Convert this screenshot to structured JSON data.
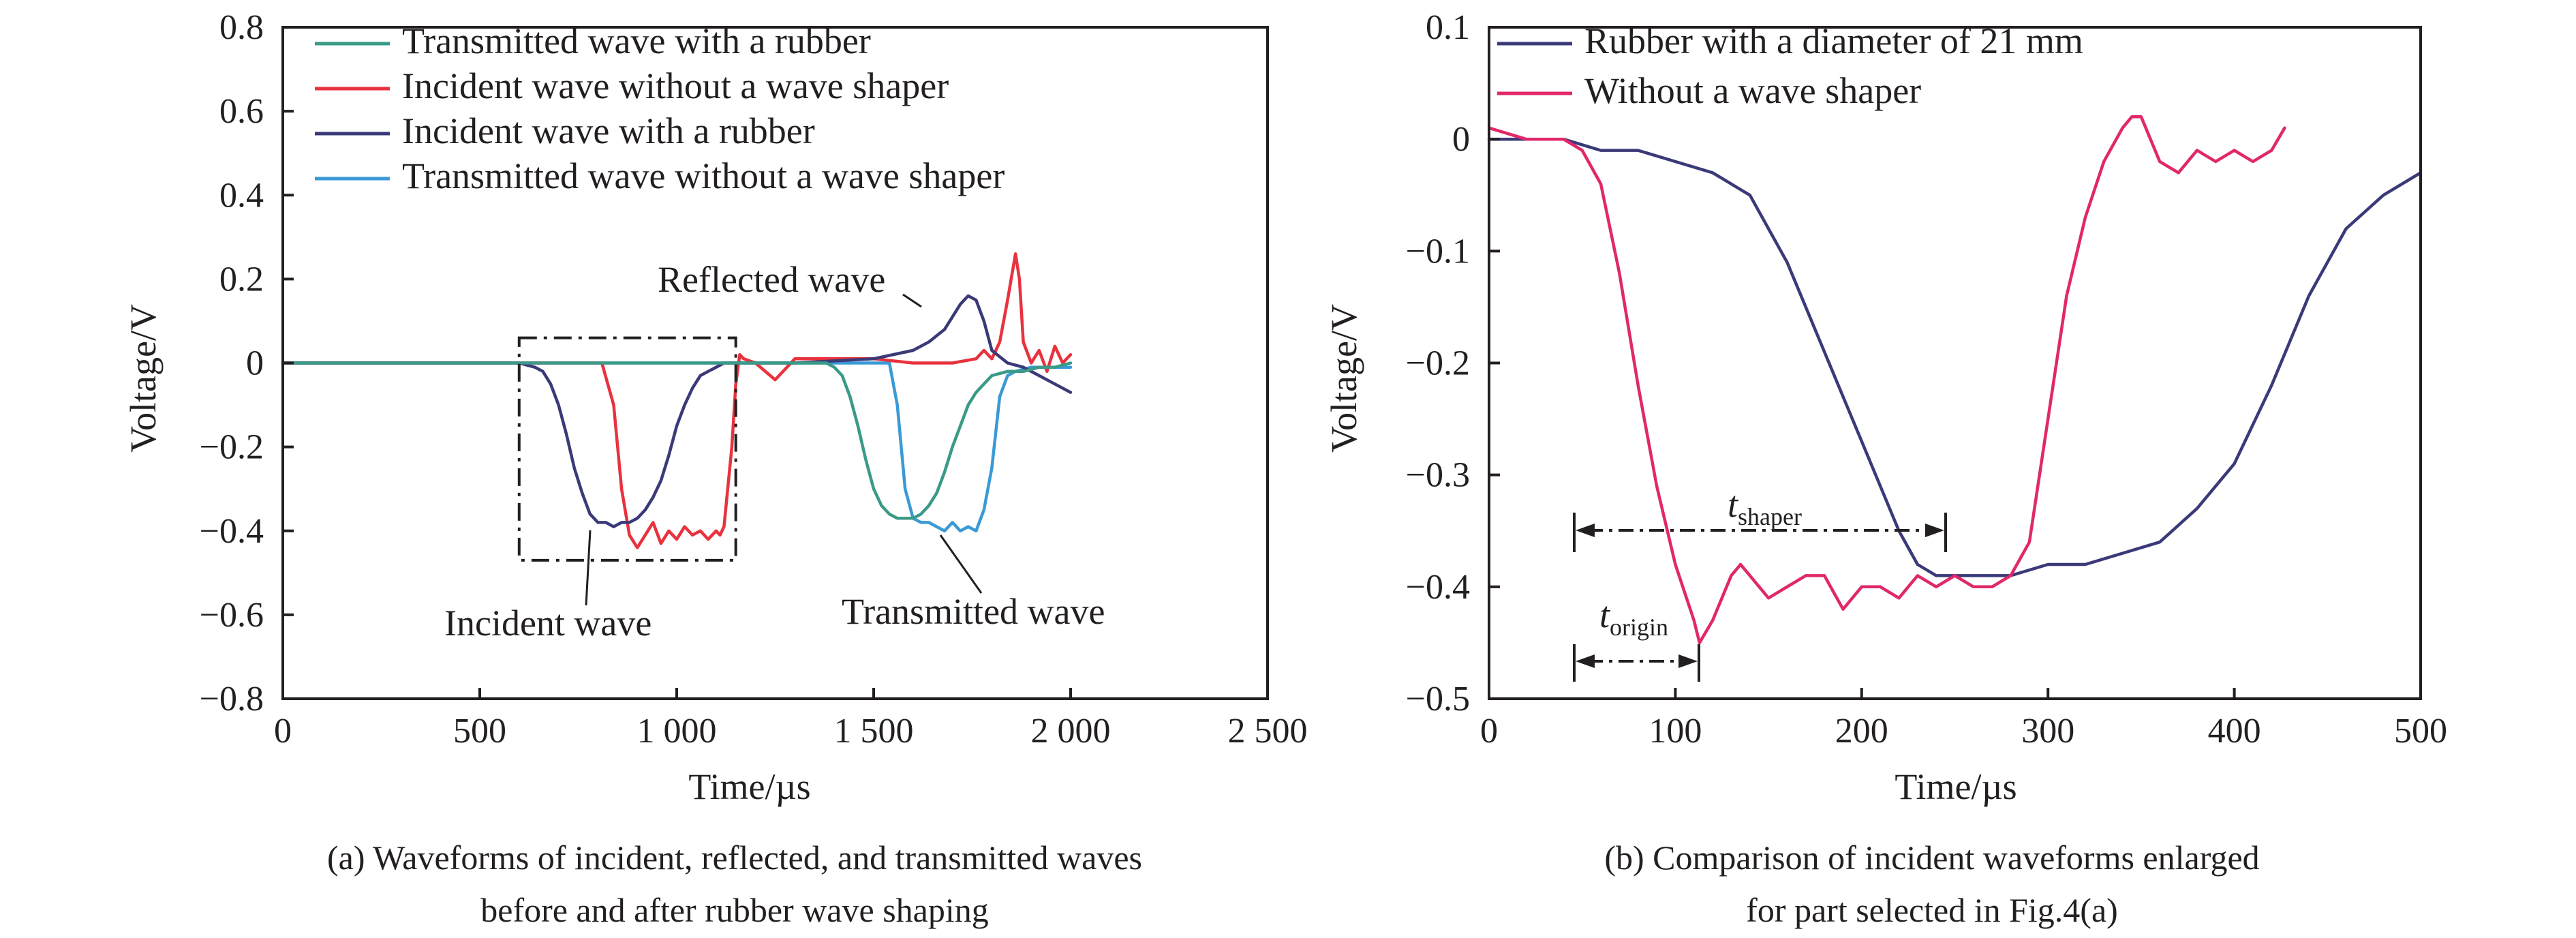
{
  "colors": {
    "teal": "#3a9a87",
    "red": "#e8323e",
    "navy": "#3b3a78",
    "lightblue": "#3a9ad6",
    "pink": "#e0286a",
    "axis": "#231f20"
  },
  "chart_data": [
    {
      "type": "line",
      "title": "",
      "xlabel": "Time/µs",
      "ylabel": "Voltage/V",
      "xlim": [
        0,
        2500
      ],
      "ylim": [
        -0.8,
        0.8
      ],
      "x_ticks": [
        0,
        500,
        1000,
        1500,
        2000,
        2500
      ],
      "x_tick_labels": [
        "0",
        "500",
        "1 000",
        "1 500",
        "2 000",
        "2 500"
      ],
      "y_ticks": [
        -0.8,
        -0.6,
        -0.4,
        -0.2,
        0,
        0.2,
        0.4,
        0.6,
        0.8
      ],
      "y_tick_labels": [
        "−0.8",
        "−0.6",
        "−0.4",
        "−0.2",
        "0",
        "0.2",
        "0.4",
        "0.6",
        "0.8"
      ],
      "legend_position": "top-left",
      "series": [
        {
          "name": "Transmitted wave without a wave shaper",
          "color": "#3a9ad6",
          "x": [
            0,
            1400,
            1540,
            1560,
            1580,
            1600,
            1620,
            1640,
            1660,
            1680,
            1700,
            1720,
            1740,
            1760,
            1780,
            1800,
            1820,
            1840,
            1860,
            1900,
            2000
          ],
          "y": [
            0,
            0,
            0,
            -0.1,
            -0.3,
            -0.37,
            -0.38,
            -0.38,
            -0.39,
            -0.4,
            -0.38,
            -0.4,
            -0.39,
            -0.4,
            -0.35,
            -0.25,
            -0.08,
            -0.03,
            -0.02,
            -0.01,
            -0.01
          ]
        },
        {
          "name": "Incident wave without a wave shaper",
          "color": "#e8323e",
          "x": [
            0,
            810,
            840,
            860,
            880,
            900,
            920,
            940,
            960,
            980,
            1000,
            1020,
            1040,
            1060,
            1080,
            1100,
            1110,
            1120,
            1140,
            1150,
            1160,
            1170,
            1200,
            1250,
            1300,
            1400,
            1500,
            1600,
            1700,
            1760,
            1780,
            1800,
            1820,
            1840,
            1860,
            1870,
            1880,
            1900,
            1920,
            1940,
            1960,
            1980,
            2000
          ],
          "y": [
            0,
            0,
            -0.1,
            -0.3,
            -0.41,
            -0.44,
            -0.41,
            -0.38,
            -0.43,
            -0.4,
            -0.42,
            -0.39,
            -0.41,
            -0.4,
            -0.42,
            -0.4,
            -0.41,
            -0.39,
            -0.2,
            -0.05,
            0.02,
            0.01,
            0,
            -0.04,
            0.01,
            0.01,
            0.01,
            0,
            0,
            0.01,
            0.03,
            0.01,
            0.05,
            0.15,
            0.26,
            0.2,
            0.05,
            0,
            0.03,
            -0.02,
            0.04,
            0,
            0.02
          ]
        },
        {
          "name": "Incident wave with a rubber",
          "color": "#3b3a78",
          "x": [
            0,
            600,
            640,
            660,
            680,
            700,
            720,
            740,
            760,
            780,
            800,
            820,
            840,
            860,
            880,
            900,
            920,
            940,
            960,
            980,
            1000,
            1020,
            1040,
            1060,
            1080,
            1100,
            1120,
            1140,
            1160,
            1200,
            1300,
            1500,
            1600,
            1640,
            1680,
            1700,
            1720,
            1740,
            1760,
            1780,
            1800,
            1840,
            1880,
            1920,
            1960,
            2000
          ],
          "y": [
            0,
            0,
            -0.01,
            -0.02,
            -0.05,
            -0.1,
            -0.17,
            -0.25,
            -0.31,
            -0.36,
            -0.38,
            -0.38,
            -0.39,
            -0.38,
            -0.38,
            -0.37,
            -0.35,
            -0.32,
            -0.28,
            -0.22,
            -0.15,
            -0.1,
            -0.06,
            -0.03,
            -0.02,
            -0.01,
            0,
            0,
            0,
            0,
            0,
            0.01,
            0.03,
            0.05,
            0.08,
            0.11,
            0.14,
            0.16,
            0.15,
            0.1,
            0.03,
            0,
            -0.01,
            -0.03,
            -0.05,
            -0.07
          ]
        },
        {
          "name": "Transmitted wave with a rubber",
          "color": "#3a9a87",
          "x": [
            0,
            1380,
            1400,
            1420,
            1440,
            1460,
            1480,
            1500,
            1520,
            1540,
            1560,
            1580,
            1600,
            1620,
            1640,
            1660,
            1680,
            1700,
            1720,
            1740,
            1760,
            1780,
            1800,
            1840,
            1880,
            1920,
            1960,
            2000
          ],
          "y": [
            0,
            0,
            -0.01,
            -0.03,
            -0.08,
            -0.15,
            -0.23,
            -0.3,
            -0.34,
            -0.36,
            -0.37,
            -0.37,
            -0.37,
            -0.36,
            -0.34,
            -0.31,
            -0.26,
            -0.2,
            -0.15,
            -0.1,
            -0.07,
            -0.05,
            -0.03,
            -0.02,
            -0.02,
            -0.01,
            -0.01,
            0
          ]
        }
      ],
      "annotations": [
        {
          "text": "Reflected wave"
        },
        {
          "text": "Incident wave"
        },
        {
          "text": "Transmitted wave"
        }
      ],
      "caption": [
        "(a) Waveforms of incident, reflected, and transmitted waves",
        "before and after rubber wave shaping"
      ]
    },
    {
      "type": "line",
      "title": "",
      "xlabel": "Time/µs",
      "ylabel": "Voltage/V",
      "xlim": [
        0,
        500
      ],
      "ylim": [
        -0.5,
        0.1
      ],
      "x_ticks": [
        0,
        100,
        200,
        300,
        400,
        500
      ],
      "x_tick_labels": [
        "0",
        "100",
        "200",
        "300",
        "400",
        "500"
      ],
      "y_ticks": [
        -0.5,
        -0.4,
        -0.3,
        -0.2,
        -0.1,
        0,
        0.1
      ],
      "y_tick_labels": [
        "−0.5",
        "−0.4",
        "−0.3",
        "−0.2",
        "−0.1",
        "0",
        "0.1"
      ],
      "legend_position": "top-left",
      "series": [
        {
          "name": "Rubber with a diameter of 21 mm",
          "color": "#3b3a78",
          "x": [
            0,
            20,
            40,
            60,
            80,
            100,
            120,
            140,
            160,
            180,
            200,
            220,
            230,
            240,
            260,
            280,
            300,
            320,
            340,
            360,
            380,
            400,
            420,
            440,
            460,
            480,
            500
          ],
          "y": [
            0,
            0,
            0,
            -0.01,
            -0.01,
            -0.02,
            -0.03,
            -0.05,
            -0.11,
            -0.19,
            -0.27,
            -0.35,
            -0.38,
            -0.39,
            -0.39,
            -0.39,
            -0.38,
            -0.38,
            -0.37,
            -0.36,
            -0.33,
            -0.29,
            -0.22,
            -0.14,
            -0.08,
            -0.05,
            -0.03
          ]
        },
        {
          "name": "Without a wave shaper",
          "color": "#e0286a",
          "x": [
            0,
            20,
            40,
            50,
            60,
            70,
            80,
            90,
            100,
            110,
            113,
            120,
            130,
            135,
            140,
            150,
            160,
            170,
            180,
            190,
            200,
            210,
            220,
            230,
            240,
            250,
            260,
            270,
            280,
            290,
            300,
            310,
            320,
            330,
            340,
            345,
            350,
            355,
            360,
            370,
            380,
            390,
            400,
            410,
            420,
            427
          ],
          "y": [
            0.01,
            0,
            0,
            -0.01,
            -0.04,
            -0.12,
            -0.22,
            -0.31,
            -0.38,
            -0.43,
            -0.45,
            -0.43,
            -0.39,
            -0.38,
            -0.39,
            -0.41,
            -0.4,
            -0.39,
            -0.39,
            -0.42,
            -0.4,
            -0.4,
            -0.41,
            -0.39,
            -0.4,
            -0.39,
            -0.4,
            -0.4,
            -0.39,
            -0.36,
            -0.25,
            -0.14,
            -0.07,
            -0.02,
            0.01,
            0.02,
            0.02,
            0.0,
            -0.02,
            -0.03,
            -0.01,
            -0.02,
            -0.01,
            -0.02,
            -0.01,
            0.01
          ]
        }
      ],
      "annotations": [
        {
          "text": "t",
          "subscript": "shaper"
        },
        {
          "text": "t",
          "subscript": "origin"
        }
      ],
      "caption": [
        "(b) Comparison of incident waveforms enlarged",
        "for part selected in Fig.4(a)"
      ]
    }
  ]
}
